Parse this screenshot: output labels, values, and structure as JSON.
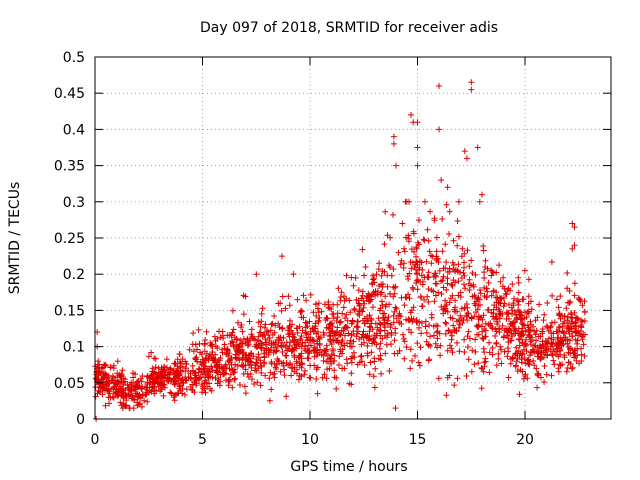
{
  "chart_data": {
    "type": "scatter",
    "title": "Day 097 of 2018, SRMTID for receiver adis",
    "xlabel": "GPS time / hours",
    "ylabel": "SRMTID / TECUs",
    "xlim": [
      0,
      24
    ],
    "ylim": [
      0,
      0.5
    ],
    "xticks": [
      0,
      5,
      10,
      15,
      20
    ],
    "xtick_labels": [
      "0",
      "5",
      "10",
      "15",
      "20"
    ],
    "yticks": [
      0,
      0.05,
      0.1,
      0.15,
      0.2,
      0.25,
      0.3,
      0.35,
      0.4,
      0.45,
      0.5
    ],
    "ytick_labels": [
      "0",
      "0.05",
      "0.1",
      "0.15",
      "0.2",
      "0.25",
      "0.3",
      "0.35",
      "0.4",
      "0.45",
      "0.5"
    ],
    "grid": true,
    "marker": "+",
    "color": "#e00000",
    "trend": [
      [
        0.0,
        0.06
      ],
      [
        0.5,
        0.05
      ],
      [
        1.0,
        0.045
      ],
      [
        1.5,
        0.035
      ],
      [
        2.0,
        0.035
      ],
      [
        2.5,
        0.045
      ],
      [
        3.0,
        0.055
      ],
      [
        4.0,
        0.06
      ],
      [
        5.0,
        0.07
      ],
      [
        6.0,
        0.085
      ],
      [
        7.0,
        0.09
      ],
      [
        8.0,
        0.095
      ],
      [
        9.0,
        0.1
      ],
      [
        10.0,
        0.105
      ],
      [
        11.0,
        0.11
      ],
      [
        12.0,
        0.12
      ],
      [
        13.0,
        0.14
      ],
      [
        14.0,
        0.16
      ],
      [
        15.0,
        0.18
      ],
      [
        16.0,
        0.17
      ],
      [
        17.0,
        0.16
      ],
      [
        18.0,
        0.15
      ],
      [
        19.0,
        0.13
      ],
      [
        20.0,
        0.11
      ],
      [
        21.0,
        0.1
      ],
      [
        22.0,
        0.12
      ],
      [
        22.8,
        0.12
      ]
    ],
    "spread": [
      [
        0.0,
        0.02
      ],
      [
        2.0,
        0.015
      ],
      [
        5.0,
        0.025
      ],
      [
        8.0,
        0.035
      ],
      [
        12.0,
        0.045
      ],
      [
        14.0,
        0.07
      ],
      [
        15.0,
        0.08
      ],
      [
        17.0,
        0.07
      ],
      [
        19.0,
        0.05
      ],
      [
        21.0,
        0.035
      ],
      [
        22.8,
        0.045
      ]
    ],
    "point_count": 2200,
    "outliers": [
      [
        0.05,
        0.0
      ],
      [
        0.1,
        0.12
      ],
      [
        0.1,
        0.1
      ],
      [
        0.15,
        0.08
      ],
      [
        7.5,
        0.2
      ],
      [
        8.7,
        0.225
      ],
      [
        13.9,
        0.39
      ],
      [
        13.9,
        0.38
      ],
      [
        14.0,
        0.35
      ],
      [
        14.7,
        0.42
      ],
      [
        14.8,
        0.41
      ],
      [
        15.0,
        0.41
      ],
      [
        15.0,
        0.375
      ],
      [
        15.0,
        0.35
      ],
      [
        14.5,
        0.3
      ],
      [
        14.3,
        0.27
      ],
      [
        16.0,
        0.46
      ],
      [
        16.0,
        0.4
      ],
      [
        16.1,
        0.33
      ],
      [
        16.4,
        0.32
      ],
      [
        17.5,
        0.465
      ],
      [
        17.5,
        0.455
      ],
      [
        17.2,
        0.37
      ],
      [
        17.3,
        0.36
      ],
      [
        17.8,
        0.375
      ],
      [
        18.0,
        0.31
      ],
      [
        17.9,
        0.3
      ],
      [
        22.2,
        0.27
      ],
      [
        22.3,
        0.265
      ],
      [
        22.3,
        0.24
      ],
      [
        22.2,
        0.235
      ]
    ]
  }
}
